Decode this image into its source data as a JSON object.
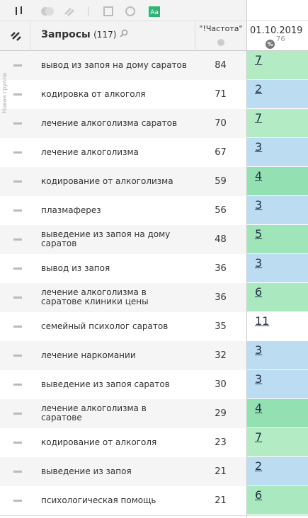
{
  "toolbar": {
    "case_icon": "Aa"
  },
  "side_label": "Новая группа",
  "header": {
    "query_title": "Запросы",
    "query_count": "(117)",
    "frequency": "\"!Частота\"",
    "date": "01.10.2019",
    "percent_icon": "%",
    "percent_value": 76
  },
  "table": {
    "rows": [
      {
        "query": "вывод из запоя на дому саратов",
        "frequency": 84,
        "position": 7,
        "color": "#b3ebc4"
      },
      {
        "query": "кодировка от алкоголя",
        "frequency": 71,
        "position": 2,
        "color": "#bcdcf2"
      },
      {
        "query": "лечение алкоголизма саратов",
        "frequency": 70,
        "position": 7,
        "color": "#b3ebc4"
      },
      {
        "query": "лечение алкоголизма",
        "frequency": 67,
        "position": 3,
        "color": "#bcdcf2"
      },
      {
        "query": "кодирование от алкоголизма",
        "frequency": 59,
        "position": 4,
        "color": "#93e1b2"
      },
      {
        "query": "плазмаферез",
        "frequency": 56,
        "position": 3,
        "color": "#bcdcf2"
      },
      {
        "query": "выведение из запоя на дому саратов",
        "frequency": 48,
        "position": 5,
        "color": "#9fe5b9"
      },
      {
        "query": "вывод из запоя",
        "frequency": 36,
        "position": 3,
        "color": "#bcdcf2"
      },
      {
        "query": "лечение алкоголизма в саратове клиники цены",
        "frequency": 36,
        "position": 6,
        "color": "#aae8c0"
      },
      {
        "query": "семейный психолог саратов",
        "frequency": 35,
        "position": 11,
        "color": "#ffffff"
      },
      {
        "query": "лечение наркомании",
        "frequency": 32,
        "position": 3,
        "color": "#bcdcf2"
      },
      {
        "query": "выведение из запоя саратов",
        "frequency": 30,
        "position": 3,
        "color": "#bcdcf2"
      },
      {
        "query": "лечение алкоголизма в саратове",
        "frequency": 29,
        "position": 4,
        "color": "#93e1b2"
      },
      {
        "query": "кодирование от алкоголя",
        "frequency": 23,
        "position": 7,
        "color": "#b3ebc4"
      },
      {
        "query": "выведение из запоя",
        "frequency": 21,
        "position": 2,
        "color": "#bcdcf2"
      },
      {
        "query": "психологическая помощь",
        "frequency": 21,
        "position": 6,
        "color": "#aae8c0"
      }
    ]
  }
}
